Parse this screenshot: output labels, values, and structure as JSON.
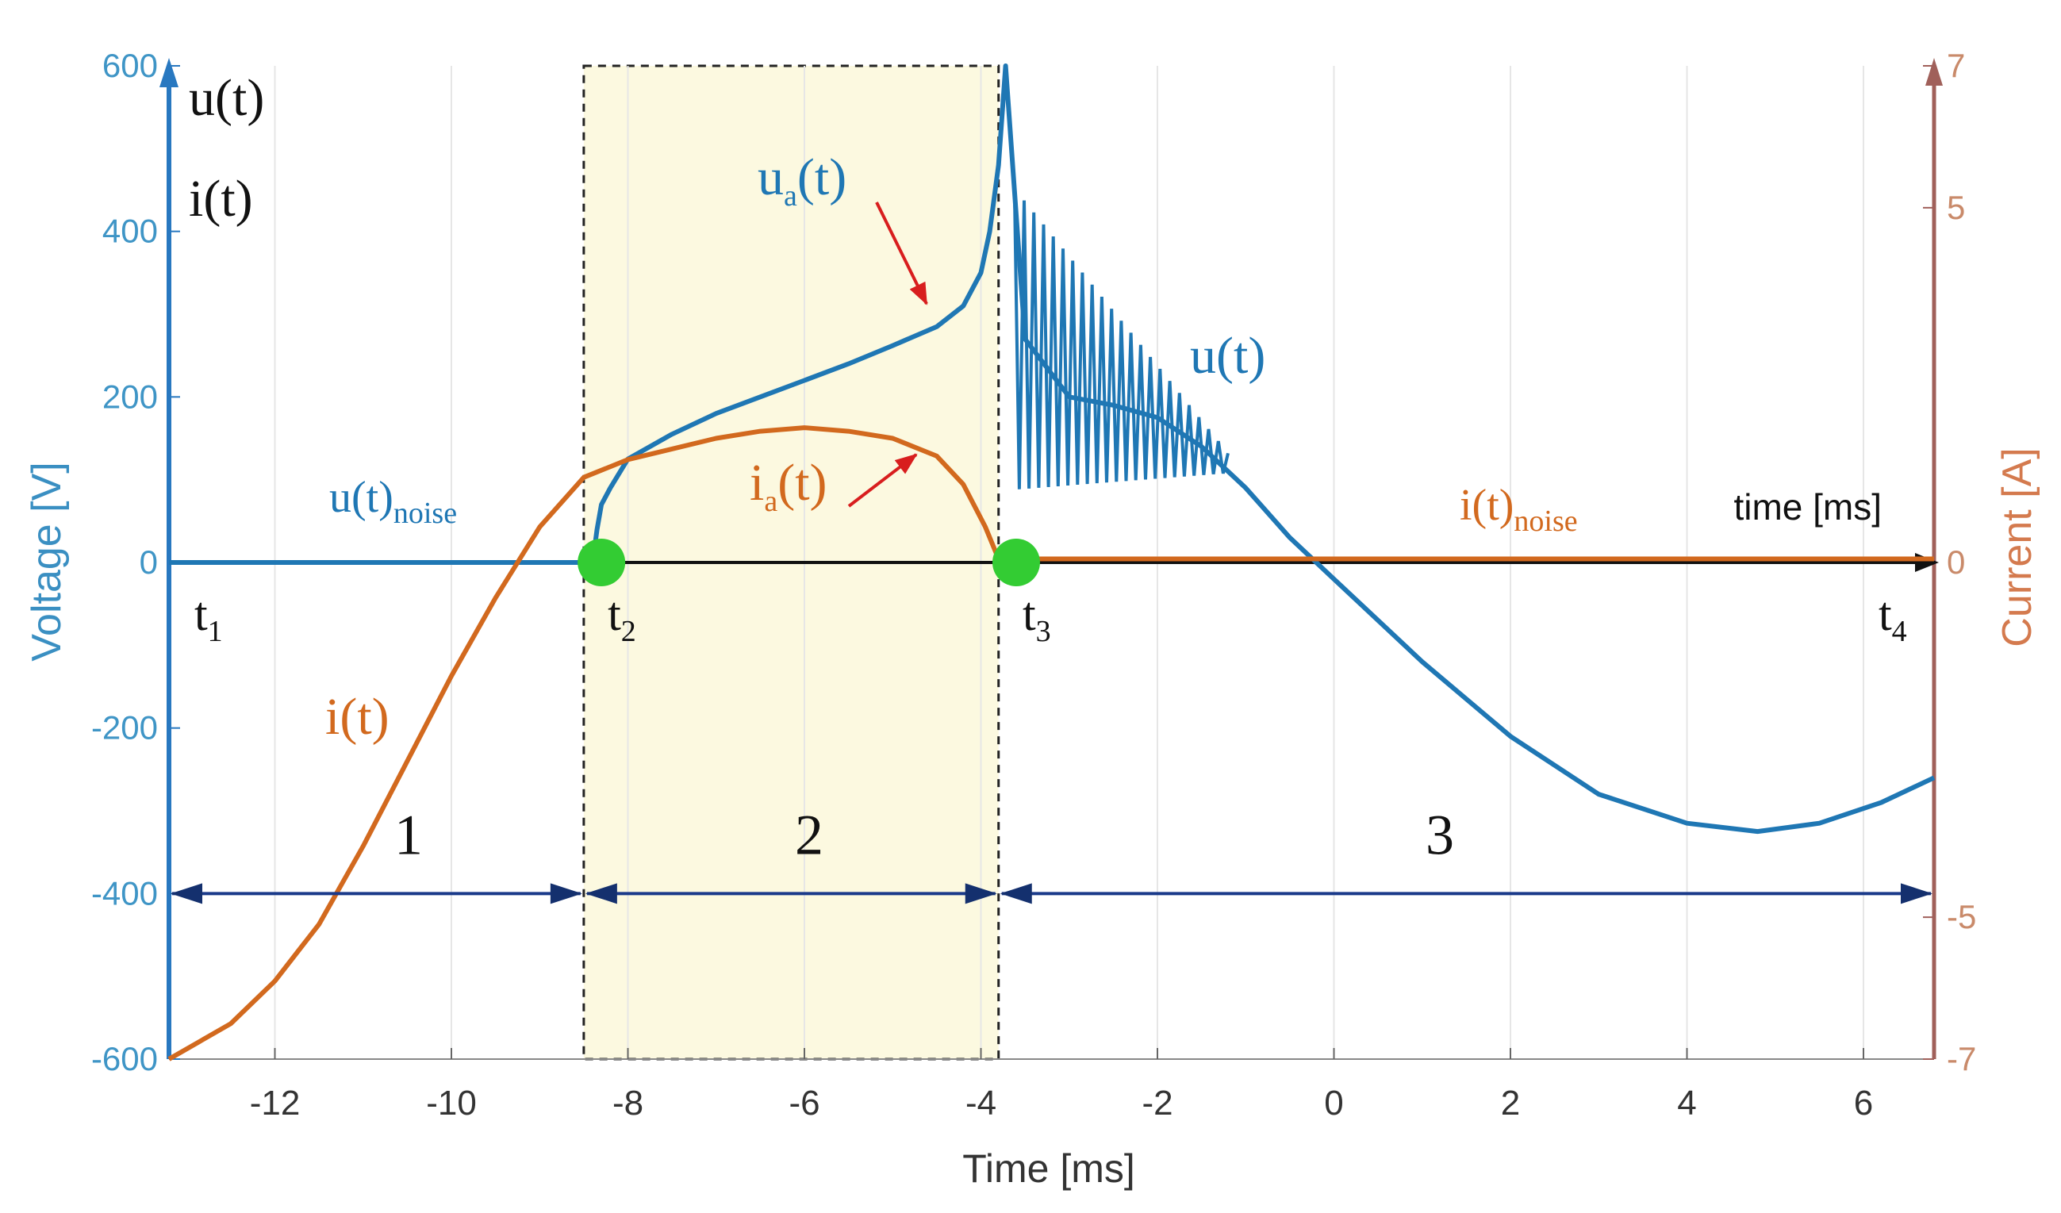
{
  "chart_data": {
    "type": "line",
    "title": "",
    "xlabel": "Time [ms]",
    "ylabel_left": "Voltage [V]",
    "ylabel_right": "Current [A]",
    "xlim": [
      -13.2,
      6.8
    ],
    "ylim_left": [
      -600,
      600
    ],
    "ylim_right": [
      -7,
      7
    ],
    "x_ticks": [
      -12,
      -10,
      -8,
      -6,
      -4,
      -2,
      0,
      2,
      4,
      6
    ],
    "y_ticks_left": [
      600,
      400,
      200,
      0,
      -200,
      -400,
      -600
    ],
    "y_ticks_right": [
      7,
      5,
      0,
      -5,
      -7
    ],
    "grid": true,
    "axis_corner_labels": [
      "u(t)",
      "i(t)"
    ],
    "time_axis_label": "time [ms]",
    "highlight_region": {
      "x_start": -8.5,
      "x_end": -3.8
    },
    "series": [
      {
        "name": "u(t)",
        "axis": "left",
        "color": "#1f77b4",
        "points": [
          [
            -13.2,
            0
          ],
          [
            -8.4,
            0
          ],
          [
            -8.35,
            40
          ],
          [
            -8.3,
            70
          ],
          [
            -8.2,
            90
          ],
          [
            -8.0,
            125
          ],
          [
            -7.5,
            155
          ],
          [
            -7.0,
            180
          ],
          [
            -6.5,
            200
          ],
          [
            -6.0,
            220
          ],
          [
            -5.5,
            240
          ],
          [
            -5.0,
            262
          ],
          [
            -4.5,
            285
          ],
          [
            -4.2,
            310
          ],
          [
            -4.0,
            350
          ],
          [
            -3.9,
            400
          ],
          [
            -3.8,
            480
          ],
          [
            -3.72,
            600
          ],
          [
            -3.5,
            270
          ],
          [
            -3.0,
            200
          ],
          [
            -2.5,
            190
          ],
          [
            -2.0,
            175
          ],
          [
            -1.5,
            140
          ],
          [
            -1.0,
            90
          ],
          [
            -0.5,
            30
          ],
          [
            0,
            -20
          ],
          [
            1.0,
            -120
          ],
          [
            2.0,
            -210
          ],
          [
            3.0,
            -280
          ],
          [
            4.0,
            -315
          ],
          [
            4.8,
            -325
          ],
          [
            5.5,
            -315
          ],
          [
            6.2,
            -290
          ],
          [
            6.8,
            -260
          ]
        ]
      },
      {
        "name": "i(t)",
        "axis": "right",
        "color": "#d2691e",
        "points": [
          [
            -13.2,
            -7.0
          ],
          [
            -12.5,
            -6.5
          ],
          [
            -12.0,
            -5.9
          ],
          [
            -11.5,
            -5.1
          ],
          [
            -11.0,
            -4.0
          ],
          [
            -10.5,
            -2.8
          ],
          [
            -10.0,
            -1.6
          ],
          [
            -9.5,
            -0.5
          ],
          [
            -9.0,
            0.5
          ],
          [
            -8.5,
            1.2
          ],
          [
            -8.0,
            1.45
          ],
          [
            -7.5,
            1.6
          ],
          [
            -7.0,
            1.75
          ],
          [
            -6.5,
            1.85
          ],
          [
            -6.0,
            1.9
          ],
          [
            -5.5,
            1.85
          ],
          [
            -5.0,
            1.75
          ],
          [
            -4.5,
            1.5
          ],
          [
            -4.2,
            1.1
          ],
          [
            -3.95,
            0.5
          ],
          [
            -3.8,
            0.05
          ],
          [
            -3.6,
            0.05
          ],
          [
            6.8,
            0.05
          ]
        ]
      }
    ],
    "annotations": [
      {
        "main": "u",
        "sub": "a",
        "tail": "(t)"
      },
      {
        "main": "i",
        "sub": "a",
        "tail": "(t)"
      },
      {
        "main": "u(t)",
        "sub": "noise",
        "tail": ""
      },
      {
        "main": "i(t)",
        "sub": "noise",
        "tail": ""
      },
      {
        "main": "u(t)",
        "sub": "",
        "tail": ""
      },
      {
        "main": "i(t)",
        "sub": "",
        "tail": ""
      }
    ],
    "time_markers": [
      {
        "main": "t",
        "sub": "1",
        "x": -13.2
      },
      {
        "main": "t",
        "sub": "2",
        "x": -8.3
      },
      {
        "main": "t",
        "sub": "3",
        "x": -3.6
      },
      {
        "main": "t",
        "sub": "4",
        "x": 6.8
      }
    ],
    "key_points": [
      [
        -8.3,
        0
      ],
      [
        -3.6,
        0
      ]
    ],
    "regions": [
      {
        "label": "1",
        "x_start": -13.2,
        "x_end": -8.5
      },
      {
        "label": "2",
        "x_start": -8.5,
        "x_end": -3.8
      },
      {
        "label": "3",
        "x_start": -3.8,
        "x_end": 6.8
      }
    ]
  }
}
